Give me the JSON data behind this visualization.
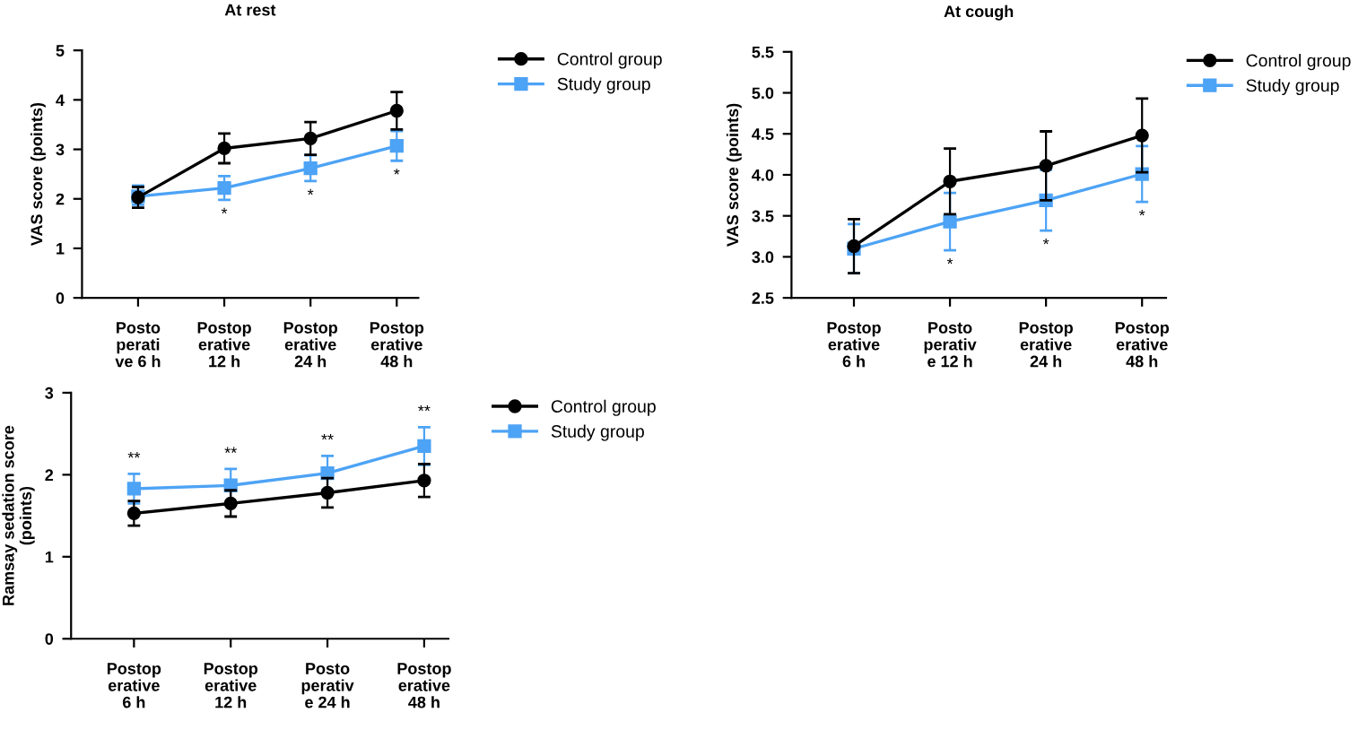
{
  "chart_data": [
    {
      "type": "line",
      "title": "At rest",
      "ylabel": "VAS score (points)",
      "categories": [
        "Posto\nperati\nve 6 h",
        "Postop\nerative\n12 h",
        "Postop\nerative\n24 h",
        "Postop\nerative\n48 h"
      ],
      "series": [
        {
          "name": "Control group",
          "color": "#000000",
          "marker": "circle",
          "values": [
            2.03,
            3.02,
            3.22,
            3.78
          ],
          "errors": [
            0.21,
            0.3,
            0.33,
            0.38
          ]
        },
        {
          "name": "Study group",
          "color": "#4da3f5",
          "marker": "square",
          "values": [
            2.05,
            2.22,
            2.62,
            3.07
          ],
          "errors": [
            [
              1.88,
              2.27
            ],
            0.24,
            0.26,
            0.3
          ]
        }
      ],
      "ylim": [
        0,
        5
      ],
      "yticks": [
        0,
        1,
        2,
        3,
        4,
        5
      ],
      "legend": "top right",
      "grid": false,
      "annotations": [
        "*",
        "*",
        "*"
      ]
    },
    {
      "type": "line",
      "title": "At cough",
      "ylabel": "VAS score (points)",
      "categories": [
        "Postop\nerative\n6 h",
        "Posto\nperativ\ne 12 h",
        "Postop\nerative\n24 h",
        "Postop\nerative\n48 h"
      ],
      "series": [
        {
          "name": "Control group",
          "color": "#000000",
          "marker": "circle",
          "values": [
            3.13,
            3.92,
            4.11,
            4.48
          ],
          "errors": [
            0.33,
            0.4,
            0.42,
            0.45
          ]
        },
        {
          "name": "Study group",
          "color": "#4da3f5",
          "marker": "square",
          "values": [
            3.1,
            3.43,
            3.69,
            4.01
          ],
          "errors": [
            0.3,
            0.35,
            0.37,
            0.34
          ]
        }
      ],
      "ylim": [
        2.5,
        5.5
      ],
      "yticks": [
        2.5,
        {
          "value": 3,
          "label": "3.0"
        },
        3.5,
        {
          "value": 4,
          "label": "4.0"
        },
        4.5,
        {
          "value": 5,
          "label": "5.0"
        },
        5.5
      ],
      "legend": "top right",
      "grid": false,
      "annotations": [
        "*",
        "*",
        "*"
      ]
    },
    {
      "type": "line",
      "ylabel": "Ramsay sedation score\n(points)",
      "categories": [
        "Postop\nerative\n6 h",
        "Postop\nerative\n12 h",
        "Posto\nperativ\ne 24 h",
        "Postop\nerative\n48 h"
      ],
      "series": [
        {
          "name": "Control group",
          "color": "#000000",
          "marker": "circle",
          "values": [
            1.53,
            1.65,
            1.78,
            1.93
          ],
          "errors": [
            0.15,
            0.16,
            0.18,
            0.2
          ]
        },
        {
          "name": "Study group",
          "color": "#4da3f5",
          "marker": "square",
          "values": [
            1.83,
            1.87,
            2.02,
            2.35
          ],
          "errors": [
            0.18,
            0.2,
            0.21,
            0.23
          ]
        }
      ],
      "ylim": [
        0,
        3
      ],
      "yticks": [
        0,
        1,
        2,
        3
      ],
      "legend": "top right",
      "grid": false,
      "annotations": [
        "**",
        "**",
        "**",
        "**"
      ]
    }
  ]
}
